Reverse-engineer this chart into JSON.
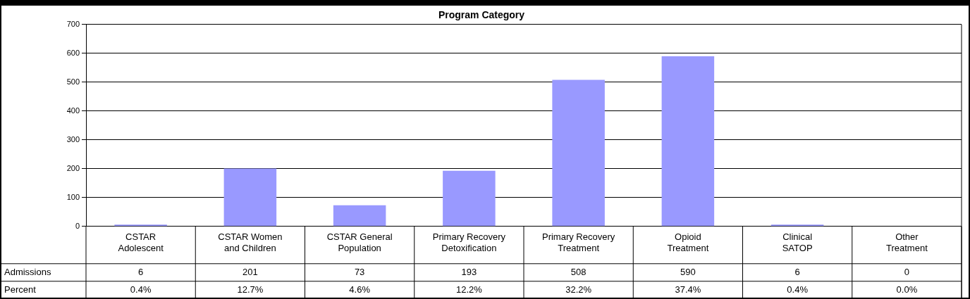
{
  "chart_data": {
    "type": "bar",
    "title": "Program Category",
    "categories": [
      "CSTAR Adolescent",
      "CSTAR Women and Children",
      "CSTAR General Population",
      "Primary Recovery Detoxification",
      "Primary Recovery Treatment",
      "Opioid Treatment",
      "Clinical SATOP",
      "Other Treatment"
    ],
    "series": [
      {
        "name": "Admissions",
        "color": "#9999ff",
        "values": [
          6,
          201,
          73,
          193,
          508,
          590,
          6,
          0
        ]
      }
    ],
    "ylim": [
      0,
      700
    ],
    "yticks": [
      0,
      100,
      200,
      300,
      400,
      500,
      600,
      700
    ],
    "grid": "y",
    "legend": false,
    "data_labels": true,
    "annotations": [
      "Percent",
      "0.4%",
      "12.7%",
      "4.6%",
      "12.2%",
      "32.2%",
      "37.4%",
      "0.4%",
      "0.0%"
    ]
  }
}
